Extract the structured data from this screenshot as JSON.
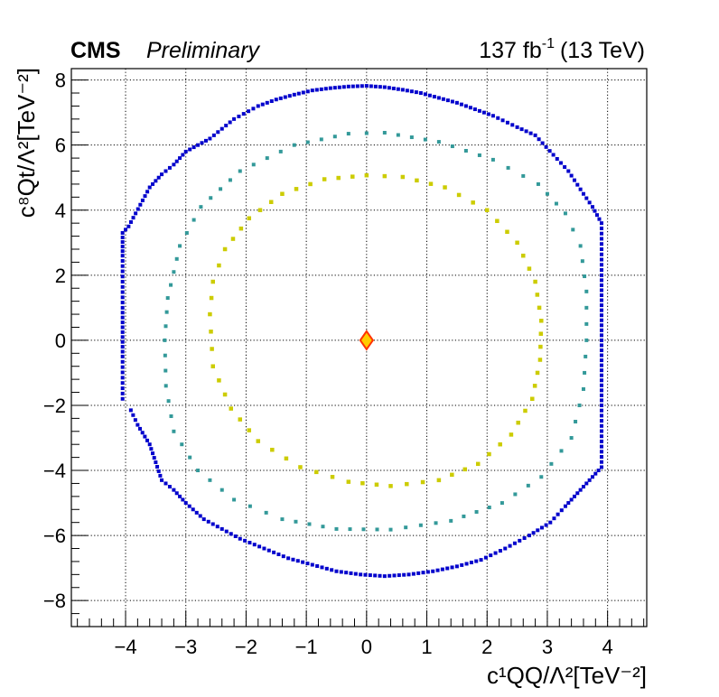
{
  "header": {
    "experiment": "CMS",
    "status": "Preliminary",
    "lumi_main": "137 fb",
    "lumi_exp": "-1",
    "lumi_energy": "(13 TeV)"
  },
  "chart_data": {
    "type": "scatter",
    "xlabel": "c¹QQ/Λ²[TeV⁻²]",
    "ylabel": "c⁸Qt/Λ²[TeV⁻²]",
    "xlim": [
      -4.9,
      4.65
    ],
    "ylim": [
      -8.8,
      8.35
    ],
    "xticks": [
      -4,
      -3,
      -2,
      -1,
      0,
      1,
      2,
      3,
      4
    ],
    "yticks": [
      -8,
      -6,
      -4,
      -2,
      0,
      2,
      4,
      6,
      8
    ],
    "grid": true,
    "best_fit": {
      "x": 0.0,
      "y": 0.0,
      "marker": "diamond",
      "fill": "#ffcc00",
      "stroke": "#ff3300"
    },
    "contours": [
      {
        "color": "#cccc00",
        "points": [
          [
            -2.6,
            0.8
          ],
          [
            -2.55,
            1.8
          ],
          [
            -2.35,
            2.8
          ],
          [
            -1.95,
            3.75
          ],
          [
            -1.4,
            4.5
          ],
          [
            -0.7,
            4.95
          ],
          [
            0,
            5.07
          ],
          [
            0.6,
            5.02
          ],
          [
            1.3,
            4.7
          ],
          [
            2.0,
            4.0
          ],
          [
            2.5,
            3.0
          ],
          [
            2.8,
            1.8
          ],
          [
            2.9,
            0.6
          ],
          [
            2.88,
            -0.6
          ],
          [
            2.75,
            -1.8
          ],
          [
            2.4,
            -2.9
          ],
          [
            1.85,
            -3.8
          ],
          [
            1.2,
            -4.3
          ],
          [
            0.4,
            -4.48
          ],
          [
            -0.3,
            -4.35
          ],
          [
            -1.1,
            -3.9
          ],
          [
            -1.8,
            -3.1
          ],
          [
            -2.25,
            -2.1
          ],
          [
            -2.55,
            -0.8
          ],
          [
            -2.6,
            0.8
          ]
        ]
      },
      {
        "color": "#339999",
        "points": [
          [
            -3.35,
            0
          ],
          [
            -3.3,
            1.3
          ],
          [
            -3.1,
            2.9
          ],
          [
            -2.75,
            4.1
          ],
          [
            -2.1,
            5.2
          ],
          [
            -1.2,
            6.0
          ],
          [
            -0.3,
            6.35
          ],
          [
            0.3,
            6.38
          ],
          [
            1.2,
            6.1
          ],
          [
            2.1,
            5.55
          ],
          [
            2.85,
            4.8
          ],
          [
            3.3,
            3.9
          ],
          [
            3.55,
            2.9
          ],
          [
            3.65,
            1.5
          ],
          [
            3.65,
            0
          ],
          [
            3.6,
            -1.5
          ],
          [
            3.4,
            -3.0
          ],
          [
            2.9,
            -4.2
          ],
          [
            2.25,
            -5.0
          ],
          [
            1.4,
            -5.55
          ],
          [
            0.4,
            -5.82
          ],
          [
            -0.5,
            -5.8
          ],
          [
            -1.4,
            -5.5
          ],
          [
            -2.2,
            -4.9
          ],
          [
            -2.8,
            -4.0
          ],
          [
            -3.2,
            -2.8
          ],
          [
            -3.33,
            -1.4
          ],
          [
            -3.35,
            0
          ]
        ]
      },
      {
        "color": "#0000cc",
        "points": [
          [
            -4.05,
            -1.8
          ],
          [
            -4.05,
            -0.5
          ],
          [
            -4.05,
            1.0
          ],
          [
            -4.05,
            2.6
          ],
          [
            -4.05,
            3.3
          ],
          [
            -3.95,
            3.5
          ],
          [
            -3.6,
            4.7
          ],
          [
            -3.4,
            5.1
          ],
          [
            -3.2,
            5.4
          ],
          [
            -3.0,
            5.8
          ],
          [
            -2.8,
            6.0
          ],
          [
            -2.6,
            6.2
          ],
          [
            -2.4,
            6.5
          ],
          [
            -2.2,
            6.8
          ],
          [
            -1.8,
            7.2
          ],
          [
            -1.5,
            7.4
          ],
          [
            -1.2,
            7.55
          ],
          [
            -0.9,
            7.68
          ],
          [
            -0.6,
            7.75
          ],
          [
            -0.3,
            7.8
          ],
          [
            0,
            7.82
          ],
          [
            0.3,
            7.78
          ],
          [
            0.6,
            7.7
          ],
          [
            0.9,
            7.6
          ],
          [
            1.2,
            7.45
          ],
          [
            1.5,
            7.3
          ],
          [
            1.8,
            7.1
          ],
          [
            2.1,
            6.9
          ],
          [
            2.5,
            6.55
          ],
          [
            2.8,
            6.3
          ],
          [
            3.1,
            5.7
          ],
          [
            3.35,
            5.2
          ],
          [
            3.6,
            4.5
          ],
          [
            3.75,
            4.1
          ],
          [
            3.9,
            3.6
          ],
          [
            3.9,
            2.0
          ],
          [
            3.9,
            0
          ],
          [
            3.9,
            -2.0
          ],
          [
            3.9,
            -3.9
          ],
          [
            3.7,
            -4.3
          ],
          [
            3.5,
            -4.7
          ],
          [
            3.3,
            -5.1
          ],
          [
            3.05,
            -5.6
          ],
          [
            2.7,
            -6.0
          ],
          [
            2.3,
            -6.4
          ],
          [
            1.9,
            -6.75
          ],
          [
            1.5,
            -6.95
          ],
          [
            1.1,
            -7.1
          ],
          [
            0.7,
            -7.2
          ],
          [
            0.3,
            -7.25
          ],
          [
            -0.1,
            -7.2
          ],
          [
            -0.5,
            -7.1
          ],
          [
            -0.9,
            -6.9
          ],
          [
            -1.3,
            -6.7
          ],
          [
            -1.7,
            -6.4
          ],
          [
            -2.1,
            -6.1
          ],
          [
            -2.4,
            -5.8
          ],
          [
            -2.7,
            -5.5
          ],
          [
            -3.0,
            -5.0
          ],
          [
            -3.2,
            -4.6
          ],
          [
            -3.4,
            -4.3
          ],
          [
            -3.6,
            -3.2
          ],
          [
            -3.8,
            -2.6
          ],
          [
            -3.95,
            -2.0
          ]
        ]
      }
    ]
  }
}
